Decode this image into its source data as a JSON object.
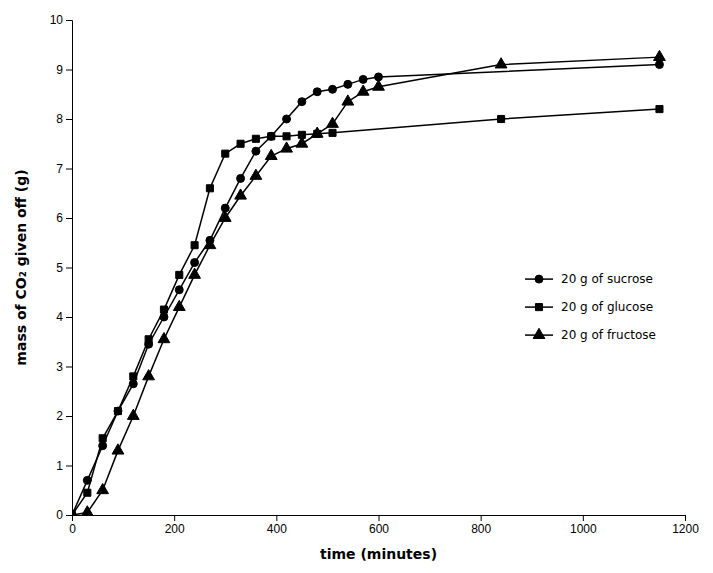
{
  "chart_data": {
    "type": "line",
    "xlabel": "time (minutes)",
    "ylabel": "mass of CO₂ given off (g)",
    "xlim": [
      0,
      1200
    ],
    "ylim": [
      0,
      10
    ],
    "xticks": [
      0,
      200,
      400,
      600,
      800,
      1000,
      1200
    ],
    "yticks": [
      0,
      1,
      2,
      3,
      4,
      5,
      6,
      7,
      8,
      9,
      10
    ],
    "grid": false,
    "legend": "right",
    "series": [
      {
        "name": "20 g of sucrose",
        "color": "#000000",
        "marker": "circle",
        "x": [
          0,
          30,
          60,
          90,
          120,
          150,
          180,
          210,
          240,
          270,
          300,
          330,
          360,
          390,
          420,
          450,
          480,
          510,
          540,
          570,
          600,
          1150
        ],
        "values": [
          0,
          0.7,
          1.4,
          2.1,
          2.65,
          3.45,
          4.0,
          4.55,
          5.1,
          5.55,
          6.2,
          6.8,
          7.35,
          7.65,
          8.0,
          8.35,
          8.55,
          8.6,
          8.7,
          8.8,
          8.85,
          9.1
        ]
      },
      {
        "name": "20 g of glucose",
        "color": "#000000",
        "marker": "square",
        "x": [
          0,
          30,
          60,
          90,
          120,
          150,
          180,
          210,
          240,
          270,
          300,
          330,
          360,
          390,
          420,
          450,
          480,
          510,
          840,
          1150
        ],
        "values": [
          0,
          0.45,
          1.55,
          2.1,
          2.8,
          3.55,
          4.15,
          4.85,
          5.45,
          6.6,
          7.3,
          7.5,
          7.6,
          7.65,
          7.65,
          7.68,
          7.7,
          7.72,
          8.0,
          8.2
        ]
      },
      {
        "name": "20 g of fructose",
        "color": "#000000",
        "marker": "triangle",
        "x": [
          0,
          30,
          60,
          90,
          120,
          150,
          180,
          210,
          240,
          270,
          300,
          330,
          360,
          390,
          420,
          450,
          480,
          510,
          540,
          570,
          600,
          840,
          1150
        ],
        "values": [
          0,
          0.05,
          0.5,
          1.3,
          2.0,
          2.8,
          3.55,
          4.2,
          4.85,
          5.45,
          6.0,
          6.45,
          6.85,
          7.25,
          7.4,
          7.5,
          7.7,
          7.9,
          8.35,
          8.55,
          8.65,
          9.1,
          9.25
        ]
      }
    ]
  }
}
